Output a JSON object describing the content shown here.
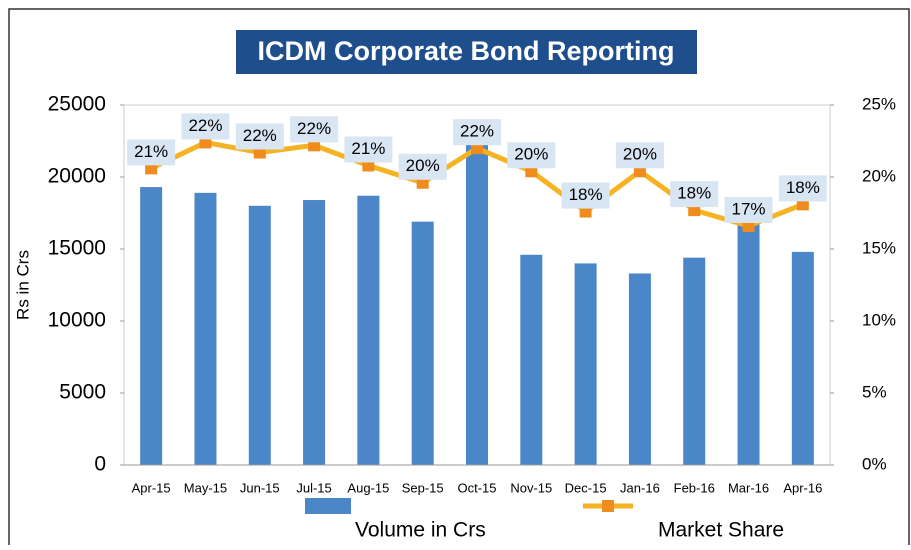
{
  "chart_data": {
    "type": "bar_line",
    "title": "ICDM Corporate Bond Reporting",
    "y_label": "Rs in Crs",
    "categories": [
      "Apr-15",
      "May-15",
      "Jun-15",
      "Jul-15",
      "Aug-15",
      "Sep-15",
      "Oct-15",
      "Nov-15",
      "Dec-15",
      "Jan-16",
      "Feb-16",
      "Mar-16",
      "Apr-16"
    ],
    "series": [
      {
        "name": "Volume in Crs",
        "type": "bar",
        "color": "#4a86c8",
        "values": [
          19300,
          18900,
          18000,
          18400,
          18700,
          16900,
          22600,
          14600,
          14000,
          13300,
          14400,
          16700,
          14800
        ]
      },
      {
        "name": "Market Share",
        "type": "line",
        "axis": "y2",
        "color": "#f5b324",
        "marker_color": "#f08c1e",
        "values": [
          20.6,
          22.4,
          21.7,
          22.2,
          20.8,
          19.6,
          22.0,
          20.4,
          17.6,
          20.4,
          17.7,
          16.6,
          18.1
        ],
        "value_labels": [
          "21%",
          "22%",
          "22%",
          "22%",
          "21%",
          "20%",
          "22%",
          "20%",
          "18%",
          "20%",
          "18%",
          "17%",
          "18%"
        ]
      }
    ],
    "ylim": [
      0,
      25000
    ],
    "yticks": [
      0,
      5000,
      10000,
      15000,
      20000,
      25000
    ],
    "y2lim": [
      0,
      25
    ],
    "y2ticks": [
      {
        "value": 0,
        "label": "0%"
      },
      {
        "value": 5,
        "label": "5%"
      },
      {
        "value": 10,
        "label": "10%"
      },
      {
        "value": 15,
        "label": "15%"
      },
      {
        "value": 20,
        "label": "20%"
      },
      {
        "value": 25,
        "label": "25%"
      }
    ],
    "grid": false,
    "legend": "bottom"
  }
}
